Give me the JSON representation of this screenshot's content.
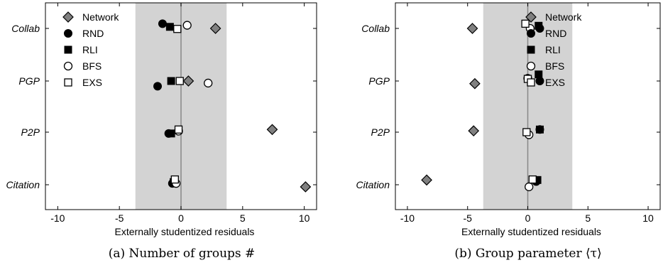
{
  "chart_data": [
    {
      "type": "scatter",
      "caption": "(a) Number of groups #",
      "xlabel": "Externally studentized residuals",
      "xlim": [
        -11,
        11
      ],
      "xticks": [
        -10,
        -5,
        0,
        5,
        10
      ],
      "tick_labels": [
        "-10",
        "-5",
        "0",
        "5",
        "10"
      ],
      "categories": [
        "Collab",
        "PGP",
        "P2P",
        "Citation"
      ],
      "shaded_band": [
        -3.7,
        3.7
      ],
      "zero_line": 0,
      "grid": false,
      "legend_position": "top-left",
      "series": [
        {
          "name": "Network",
          "marker": "diamond",
          "color": "#808080",
          "values": [
            2.8,
            0.6,
            7.4,
            10.1
          ],
          "offsets": [
            0.0,
            0.0,
            -0.1,
            0.08
          ]
        },
        {
          "name": "RND",
          "marker": "circle-filled",
          "color": "#000000",
          "values": [
            -1.5,
            -1.9,
            -1.0,
            -0.7
          ],
          "offsets": [
            -0.18,
            0.2,
            0.05,
            -0.05
          ]
        },
        {
          "name": "RLI",
          "marker": "square-filled",
          "color": "#000000",
          "values": [
            -0.9,
            -0.8,
            -0.8,
            -0.6
          ],
          "offsets": [
            -0.06,
            0.0,
            0.05,
            -0.1
          ]
        },
        {
          "name": "BFS",
          "marker": "circle-open",
          "color": "#000000",
          "values": [
            0.5,
            2.2,
            -0.2,
            -0.4
          ],
          "offsets": [
            -0.12,
            0.08,
            -0.04,
            -0.05
          ]
        },
        {
          "name": "EXS",
          "marker": "square-open",
          "color": "#000000",
          "values": [
            -0.3,
            -0.1,
            -0.2,
            -0.5
          ],
          "offsets": [
            0.02,
            0.0,
            -0.1,
            -0.2
          ]
        }
      ]
    },
    {
      "type": "scatter",
      "caption": "(b) Group parameter ⟨τ⟩",
      "xlabel": "Externally studentized residuals",
      "xlim": [
        -11,
        11
      ],
      "xticks": [
        -10,
        -5,
        0,
        5,
        10
      ],
      "tick_labels": [
        "-10",
        "-5",
        "0",
        "5",
        "10"
      ],
      "categories": [
        "Collab",
        "PGP",
        "P2P",
        "Citation"
      ],
      "shaded_band": [
        -3.7,
        3.7
      ],
      "zero_line": 0,
      "grid": false,
      "legend_position": "top-right",
      "series": [
        {
          "name": "Network",
          "marker": "diamond",
          "color": "#808080",
          "values": [
            -4.6,
            -4.4,
            -4.5,
            -8.4
          ],
          "offsets": [
            0.0,
            0.1,
            -0.05,
            -0.18
          ]
        },
        {
          "name": "RND",
          "marker": "circle-filled",
          "color": "#000000",
          "values": [
            1.0,
            1.0,
            1.0,
            0.7
          ],
          "offsets": [
            0.0,
            0.0,
            -0.1,
            -0.12
          ]
        },
        {
          "name": "RLI",
          "marker": "square-filled",
          "color": "#000000",
          "values": [
            0.9,
            0.9,
            1.0,
            0.8
          ],
          "offsets": [
            -0.1,
            -0.25,
            -0.1,
            -0.18
          ]
        },
        {
          "name": "BFS",
          "marker": "circle-open",
          "color": "#000000",
          "values": [
            0.2,
            0.0,
            0.1,
            0.1
          ],
          "offsets": [
            0.0,
            -0.1,
            0.1,
            0.08
          ]
        },
        {
          "name": "EXS",
          "marker": "square-open",
          "color": "#000000",
          "values": [
            -0.2,
            0.0,
            -0.1,
            0.4
          ],
          "offsets": [
            -0.18,
            -0.08,
            0.0,
            -0.2
          ]
        }
      ]
    }
  ]
}
